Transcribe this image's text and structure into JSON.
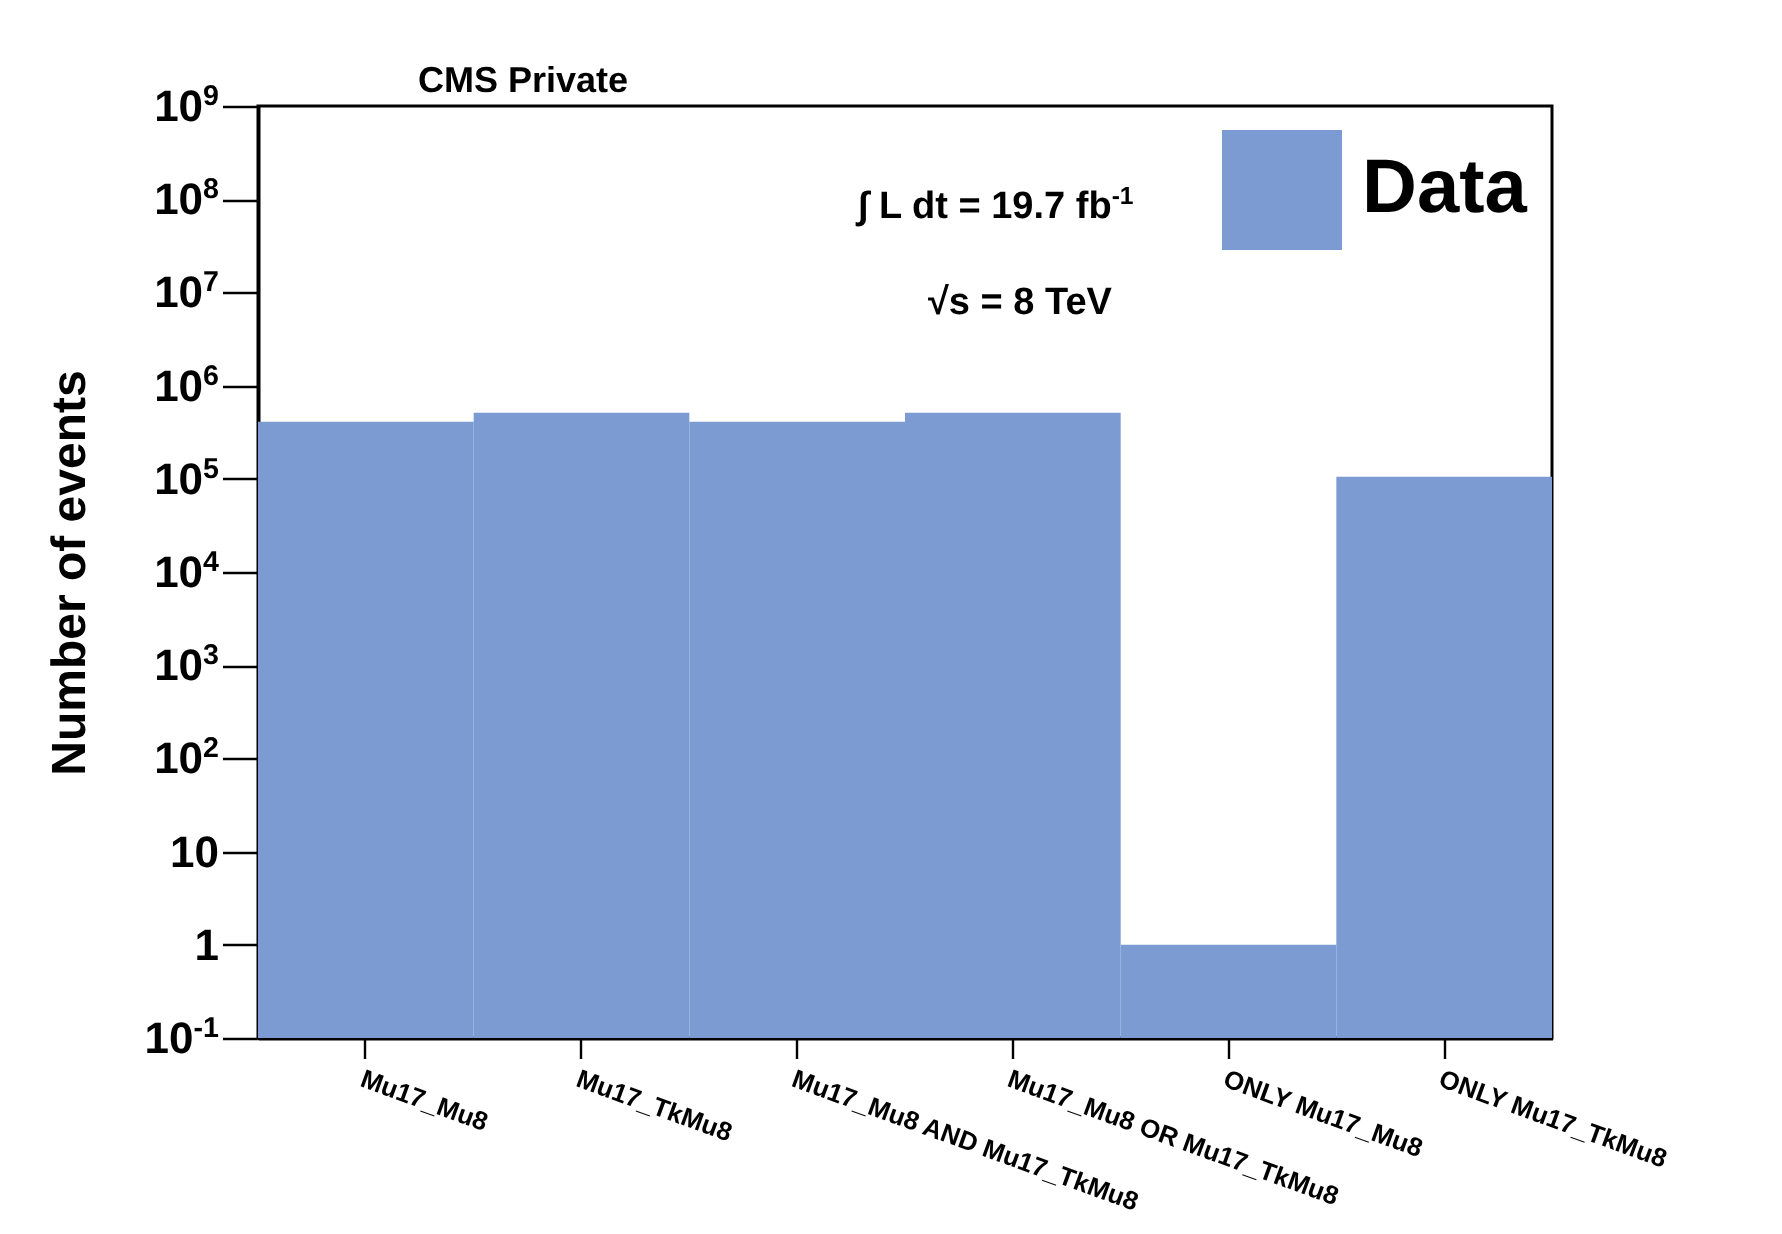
{
  "chart_data": {
    "type": "bar",
    "ylabel": "Number of events",
    "log": true,
    "legend": "top right",
    "categories": [
      "Mu17_Mu8",
      "Mu17_TkMu8",
      "Mu17_Mu8 AND Mu17_TkMu8",
      "Mu17_Mu8 OR Mu17_TkMu8",
      "ONLY Mu17_Mu8",
      "ONLY Mu17_TkMu8"
    ],
    "series": [
      {
        "name": "Data",
        "color": "#7b9bd2",
        "values": [
          410000,
          510000,
          410000,
          510000,
          1,
          105000
        ]
      }
    ],
    "ylim": [
      0.1,
      1000000000
    ],
    "yticks": [
      {
        "value": 0.1,
        "label": "10$^{-1}$"
      },
      1,
      10,
      {
        "value": 100,
        "label": "10$^{2}$"
      },
      {
        "value": 1000,
        "label": "10$^{3}$"
      },
      {
        "value": 10000,
        "label": "10$^{4}$"
      },
      {
        "value": 100000,
        "label": "10$^{5}$"
      },
      {
        "value": 1000000,
        "label": "10$^{6}$"
      },
      {
        "value": 10000000,
        "label": "10$^{7}$"
      },
      {
        "value": 100000000,
        "label": "10$^{8}$"
      },
      {
        "value": 1000000000,
        "label": "10$^{9}$"
      }
    ],
    "annotations": [
      "CMS Private",
      "∫ L dt = 19.7 fb$^{-1}$",
      "√s = 8 TeV"
    ]
  }
}
